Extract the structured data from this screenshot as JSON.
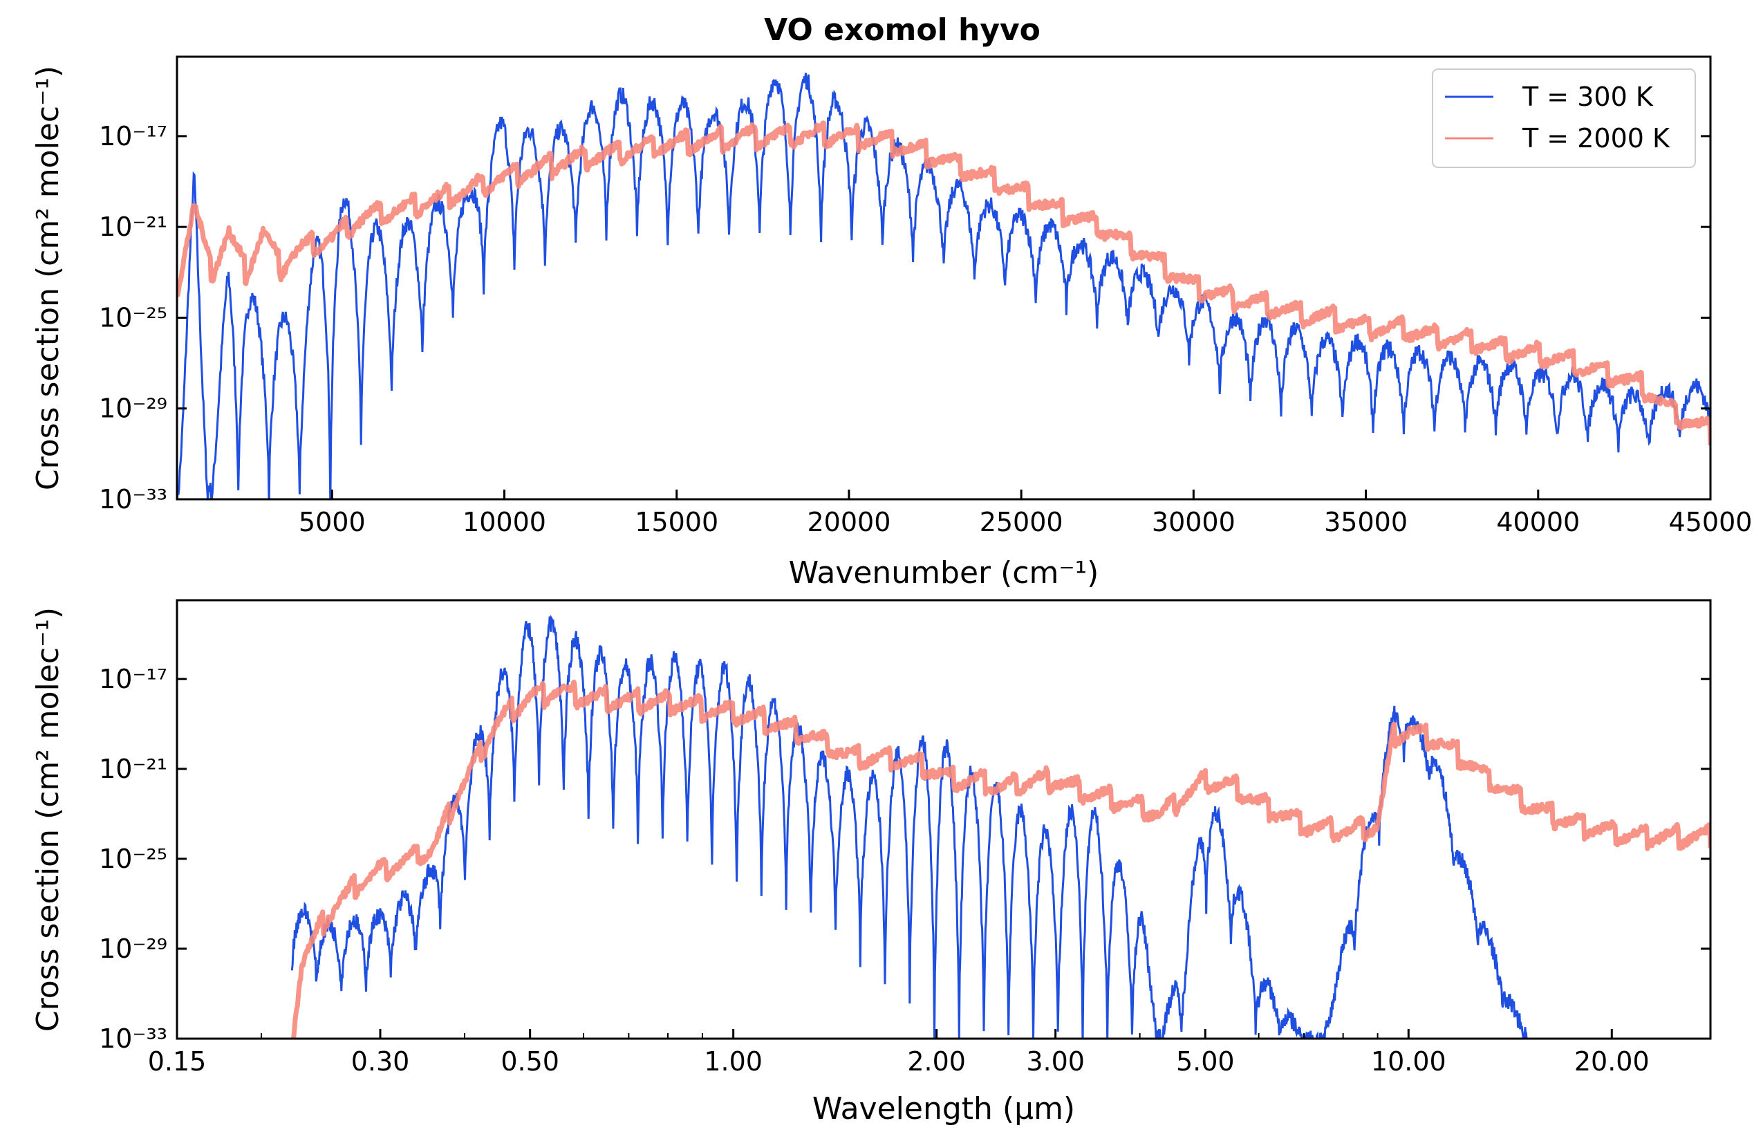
{
  "figure_title": "VO exomol hyvo",
  "colors": {
    "t300": "#1f4fe0",
    "t2000": "#f7877a"
  },
  "legend": [
    {
      "label": "T = 300 K",
      "color": "#1f4fe0"
    },
    {
      "label": "T = 2000 K",
      "color": "#f7877a"
    }
  ],
  "chart_data": [
    {
      "type": "line",
      "title": "VO exomol hyvo",
      "xlabel": "Wavenumber (cm⁻¹)",
      "ylabel": "Cross section (cm² molec⁻¹)",
      "xlim": [
        500,
        45000
      ],
      "ylim_log10": [
        -33,
        -13.5
      ],
      "yscale": "log",
      "legend_position": "top-right",
      "x_ticks": [
        5000,
        10000,
        15000,
        20000,
        25000,
        30000,
        35000,
        40000,
        45000
      ],
      "x_tick_labels": [
        "5000",
        "10000",
        "15000",
        "20000",
        "25000",
        "30000",
        "35000",
        "40000",
        "45000"
      ],
      "y_ticks": [
        -17,
        -21,
        -25,
        -29,
        -33
      ],
      "y_tick_labels": [
        "10⁻¹⁷",
        "10⁻²¹",
        "10⁻²⁵",
        "10⁻²⁹",
        "10⁻³³"
      ],
      "series": [
        {
          "name": "T = 2000 K",
          "x": [
            500,
            1000,
            1500,
            2000,
            2500,
            3000,
            3500,
            4000,
            5000,
            6000,
            7000,
            8000,
            9000,
            10000,
            11000,
            12000,
            13000,
            14000,
            15000,
            16000,
            17000,
            18000,
            19000,
            20000,
            21000,
            22000,
            23000,
            24000,
            25000,
            26000,
            27000,
            28000,
            29000,
            30000,
            31000,
            32000,
            33000,
            34000,
            35000,
            36000,
            37000,
            38000,
            39000,
            40000,
            41000,
            42000,
            43000,
            44000,
            45000
          ],
          "log10_y": [
            -23.6,
            -20,
            -23,
            -21.2,
            -23,
            -21.2,
            -22.8,
            -22,
            -21.5,
            -20.5,
            -20.2,
            -19.8,
            -19.3,
            -18.8,
            -18.4,
            -18,
            -17.8,
            -17.5,
            -17.3,
            -17.2,
            -17,
            -17,
            -16.9,
            -17,
            -17.2,
            -17.6,
            -18.2,
            -18.8,
            -19.5,
            -20.2,
            -20.8,
            -21.6,
            -22.6,
            -23.6,
            -24.1,
            -24.4,
            -24.8,
            -25,
            -25.4,
            -25.5,
            -25.8,
            -26,
            -26.4,
            -26.6,
            -27,
            -27.4,
            -28,
            -29.3,
            -30
          ],
          "values_note": ""
        },
        {
          "name": "T = 300 K",
          "x": [
            500,
            1000,
            1500,
            2000,
            3000,
            4000,
            5000,
            6000,
            7000,
            8000,
            9000,
            10000,
            11000,
            12000,
            13000,
            14000,
            15000,
            16000,
            17000,
            17500,
            18000,
            19000,
            20000,
            21000,
            22000,
            23000,
            24000,
            25000,
            26000,
            27000,
            28000,
            29000,
            30000,
            31000,
            32000,
            33000,
            34000,
            35000,
            36000,
            37000,
            38000,
            39000,
            40000,
            41000,
            42000,
            43000,
            44000,
            45000
          ],
          "log10_y_peak": [
            -33,
            -18.5,
            -33,
            -22,
            -25,
            -25,
            -19,
            -21,
            -21,
            -20,
            -19.5,
            -16,
            -17,
            -16.5,
            -15,
            -15.5,
            -15.5,
            -16,
            -15.5,
            -14.5,
            -14.5,
            -14.5,
            -16,
            -17,
            -18,
            -19,
            -20,
            -20.5,
            -21,
            -22,
            -22.5,
            -23.5,
            -24,
            -25,
            -25,
            -25.5,
            -26,
            -26,
            -26.5,
            -26.5,
            -27,
            -27,
            -27.5,
            -27.5,
            -28,
            -28.5,
            -28,
            -28
          ],
          "log10_y_trough": [
            -33,
            -33,
            -33,
            -33,
            -33,
            -33,
            -33,
            -30,
            -28,
            -26,
            -24,
            -23,
            -22.5,
            -22,
            -21.5,
            -21.5,
            -21.5,
            -21.5,
            -21.5,
            -21.5,
            -21.5,
            -21.5,
            -21.5,
            -22,
            -22.5,
            -23,
            -23.5,
            -24,
            -24.5,
            -25,
            -25.5,
            -26,
            -27,
            -28.5,
            -29,
            -29.5,
            -29.5,
            -30,
            -30,
            -30,
            -30,
            -30,
            -30,
            -30.5,
            -30.5,
            -31,
            -30.5,
            -30
          ]
        }
      ]
    },
    {
      "type": "line",
      "xlabel": "Wavelength (μm)",
      "ylabel": "Cross section (cm² molec⁻¹)",
      "xscale": "log",
      "yscale": "log",
      "xlim": [
        0.15,
        28
      ],
      "ylim_log10": [
        -33,
        -13.5
      ],
      "x_ticks": [
        0.15,
        0.3,
        0.5,
        1.0,
        2.0,
        3.0,
        5.0,
        10.0,
        20.0
      ],
      "x_tick_labels": [
        "0.15",
        "0.30",
        "0.50",
        "1.00",
        "2.00",
        "3.00",
        "5.00",
        "10.00",
        "20.00"
      ],
      "y_ticks": [
        -17,
        -21,
        -25,
        -29,
        -33
      ],
      "y_tick_labels": [
        "10⁻¹⁷",
        "10⁻²¹",
        "10⁻²⁵",
        "10⁻²⁹",
        "10⁻³³"
      ],
      "series": [
        {
          "name": "T = 2000 K",
          "x": [
            0.222,
            0.23,
            0.25,
            0.28,
            0.3,
            0.33,
            0.36,
            0.4,
            0.45,
            0.5,
            0.55,
            0.6,
            0.7,
            0.8,
            0.9,
            1.0,
            1.1,
            1.3,
            1.5,
            1.7,
            1.9,
            2.1,
            2.3,
            2.5,
            2.8,
            3.0,
            3.3,
            3.8,
            4.3,
            5.0,
            5.5,
            6.0,
            7.0,
            8.0,
            9.0,
            9.5,
            10.0,
            11.0,
            12.0,
            14.0,
            16.0,
            18.0,
            20.0,
            22.0,
            25.0,
            28.0
          ],
          "log10_y": [
            -33,
            -29.5,
            -27.5,
            -26,
            -25.5,
            -25,
            -24.5,
            -21.5,
            -18.8,
            -17.8,
            -17.5,
            -17.8,
            -18,
            -18,
            -18.3,
            -18.5,
            -18.8,
            -19.5,
            -20.5,
            -20.5,
            -20.8,
            -21.5,
            -21.5,
            -21.8,
            -21.5,
            -21.5,
            -22,
            -22.5,
            -23,
            -21.5,
            -21.8,
            -22.5,
            -23.5,
            -23.8,
            -23.5,
            -19.5,
            -19.3,
            -19.7,
            -20.5,
            -22,
            -23,
            -23.5,
            -23.8,
            -24,
            -24,
            -24
          ]
        },
        {
          "name": "T = 300 K",
          "x": [
            0.222,
            0.25,
            0.3,
            0.35,
            0.4,
            0.45,
            0.5,
            0.55,
            0.6,
            0.7,
            0.8,
            0.9,
            1.0,
            1.2,
            1.4,
            1.6,
            1.8,
            2.0,
            2.2,
            2.5,
            2.8,
            3.0,
            3.3,
            3.7,
            4.0,
            4.3,
            4.7,
            5.0,
            5.5,
            6.0,
            7.0,
            7.5,
            8.5,
            9.5,
            10.0,
            11.0,
            12.0,
            13.0,
            14.0,
            15.0
          ],
          "log10_y_peak": [
            -27,
            -28,
            -27.5,
            -26,
            -21,
            -17,
            -14.5,
            -14.5,
            -15.5,
            -16.5,
            -16,
            -16.5,
            -16.5,
            -18.5,
            -21,
            -21.5,
            -20,
            -19.5,
            -21,
            -22,
            -23.5,
            -24,
            -22,
            -25,
            -27,
            -33,
            -28,
            -21.5,
            -25,
            -30,
            -33,
            -33,
            -25,
            -18.5,
            -18.5,
            -20.5,
            -25,
            -28,
            -31,
            -33
          ],
          "log10_y_trough": [
            -30,
            -31,
            -30.5,
            -29,
            -26,
            -23,
            -22,
            -22,
            -23,
            -24,
            -24,
            -25,
            -26,
            -27,
            -28,
            -30,
            -31,
            -33,
            -33,
            -33,
            -33,
            -33,
            -33,
            -33,
            -33,
            -33,
            -33,
            -27,
            -29,
            -33,
            -33,
            -33,
            -28,
            -21,
            -20,
            -22,
            -27,
            -29.5,
            -32,
            -33
          ]
        }
      ]
    }
  ]
}
